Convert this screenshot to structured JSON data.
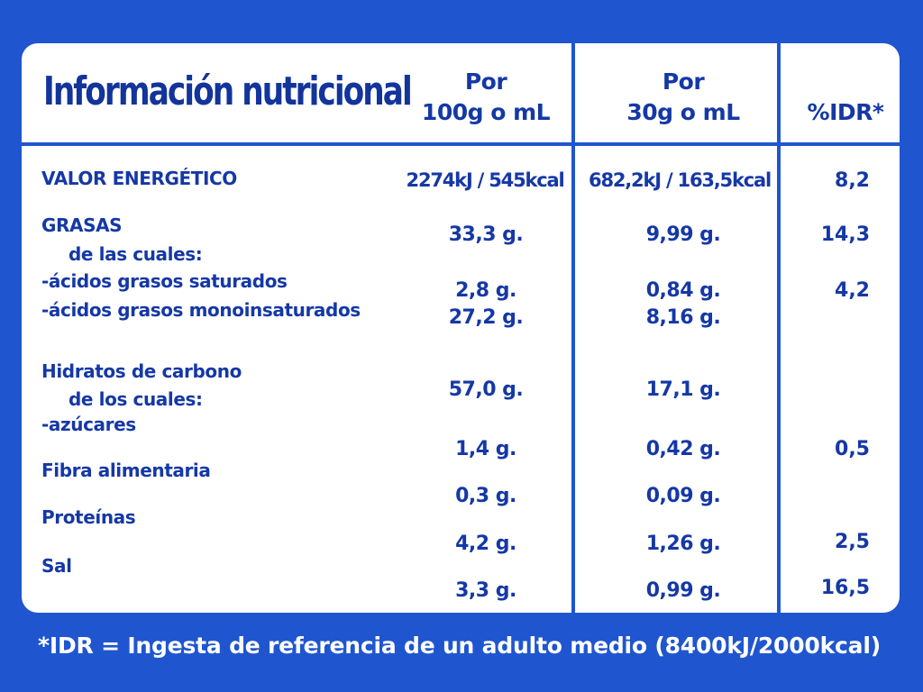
{
  "header": {
    "title": "Información nutricional",
    "col1_line1": "Por",
    "col1_line2": "100g o mL",
    "col2_line1": "Por",
    "col2_line2": "30g o mL",
    "col3": "%IDR*"
  },
  "rows": {
    "energia": {
      "label": "VALOR ENERGÉTICO",
      "v100": "2274kJ / 545kcal",
      "v30": "682,2kJ / 163,5kcal",
      "idr": "8,2"
    },
    "grasas": {
      "label": "GRASAS",
      "sub": "de las cuales:",
      "v100": "33,3 g.",
      "v30": "9,99 g.",
      "idr": "14,3"
    },
    "saturados": {
      "label": "-ácidos grasos saturados",
      "v100": "2,8 g.",
      "v30": "0,84 g.",
      "idr": "4,2"
    },
    "monoinsaturados": {
      "label": "-ácidos grasos monoinsaturados",
      "v100": "27,2 g.",
      "v30": "8,16 g."
    },
    "hidratos": {
      "label": "Hidratos de carbono",
      "sub": "de los cuales:",
      "v100": "57,0 g.",
      "v30": "17,1 g."
    },
    "azucares": {
      "label": "-azúcares",
      "v100": "1,4 g.",
      "v30": "0,42 g.",
      "idr": "0,5"
    },
    "fibra": {
      "label": "Fibra alimentaria",
      "v100": "0,3 g.",
      "v30": "0,09 g."
    },
    "proteinas": {
      "label": "Proteínas",
      "v100": "4,2 g.",
      "v30": "1,26 g.",
      "idr": "2,5"
    },
    "sal": {
      "label": "Sal",
      "v100": "3,3 g.",
      "v30": "0,99 g.",
      "idr": "16,5"
    }
  },
  "footer": "*IDR = Ingesta de referencia de un adulto medio (8400kJ/2000kcal)",
  "colors": {
    "background": "#1f56cf",
    "card": "#ffffff",
    "text": "#1538a6"
  }
}
